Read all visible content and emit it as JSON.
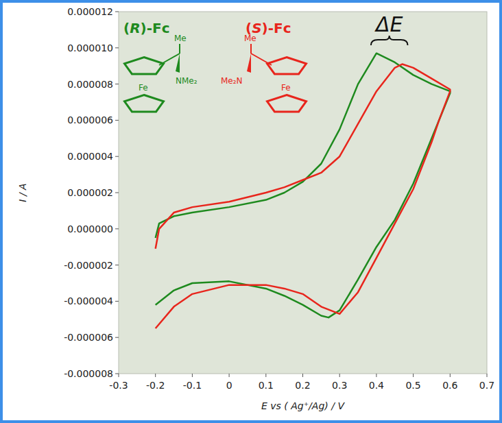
{
  "chart_data": {
    "type": "line",
    "x_label": "E vs ( Ag⁺/Ag) / V",
    "y_label": "I / A",
    "xlim": [
      -0.3,
      0.7
    ],
    "xticks": [
      -0.3,
      -0.2,
      -0.1,
      0,
      0.1,
      0.2,
      0.3,
      0.4,
      0.5,
      0.6,
      0.7
    ],
    "ylim": [
      -8e-06,
      1.2e-05
    ],
    "yticks": [
      -8e-06,
      -6e-06,
      -4e-06,
      -2e-06,
      {
        "value": 0,
        "label": "0.000000"
      },
      2e-06,
      4e-06,
      6e-06,
      8e-06,
      {
        "value": 1e-05,
        "label": "0.000010"
      },
      1.2e-05
    ],
    "grid": false,
    "legend": "top-left",
    "annotations": [
      "Me",
      "NMe₂",
      "Fe",
      "Me",
      "Me₂N",
      "Fe",
      "ΔE"
    ],
    "series": [
      {
        "name": "(R)-Fc",
        "color": "#1e8a1e",
        "x": [
          -0.2,
          -0.19,
          -0.15,
          -0.1,
          0,
          0.1,
          0.15,
          0.2,
          0.25,
          0.3,
          0.35,
          0.4,
          0.45,
          0.5,
          0.55,
          0.6,
          0.6,
          0.55,
          0.5,
          0.45,
          0.4,
          0.35,
          0.3,
          0.27,
          0.25,
          0.2,
          0.15,
          0.1,
          0,
          -0.1,
          -0.15,
          -0.2
        ],
        "values": [
          -5e-07,
          3e-07,
          7e-07,
          9e-07,
          1.2e-06,
          1.6e-06,
          2e-06,
          2.6e-06,
          3.6e-06,
          5.5e-06,
          8e-06,
          9.7e-06,
          9.2e-06,
          8.5e-06,
          8e-06,
          7.6e-06,
          7.5e-06,
          5e-06,
          2.5e-06,
          5e-07,
          -1e-06,
          -2.8e-06,
          -4.5e-06,
          -4.9e-06,
          -4.8e-06,
          -4.2e-06,
          -3.7e-06,
          -3.3e-06,
          -2.9e-06,
          -3e-06,
          -3.4e-06,
          -4.2e-06
        ]
      },
      {
        "name": "(S)-Fc",
        "color": "#e8251c",
        "x": [
          -0.2,
          -0.19,
          -0.15,
          -0.1,
          0,
          0.1,
          0.15,
          0.2,
          0.25,
          0.3,
          0.35,
          0.4,
          0.45,
          0.47,
          0.5,
          0.55,
          0.6,
          0.6,
          0.57,
          0.55,
          0.5,
          0.45,
          0.4,
          0.35,
          0.3,
          0.25,
          0.2,
          0.15,
          0.1,
          0,
          -0.1,
          -0.15,
          -0.2
        ],
        "values": [
          -1.1e-06,
          0,
          9e-07,
          1.2e-06,
          1.5e-06,
          2e-06,
          2.3e-06,
          2.7e-06,
          3.1e-06,
          4e-06,
          5.8e-06,
          7.6e-06,
          8.9e-06,
          9.1e-06,
          8.9e-06,
          8.3e-06,
          7.7e-06,
          7.6e-06,
          6e-06,
          4.8e-06,
          2.2e-06,
          3e-07,
          -1.6e-06,
          -3.5e-06,
          -4.7e-06,
          -4.3e-06,
          -3.6e-06,
          -3.3e-06,
          -3.1e-06,
          -3.1e-06,
          -3.6e-06,
          -4.3e-06,
          -5.5e-06
        ]
      }
    ]
  }
}
